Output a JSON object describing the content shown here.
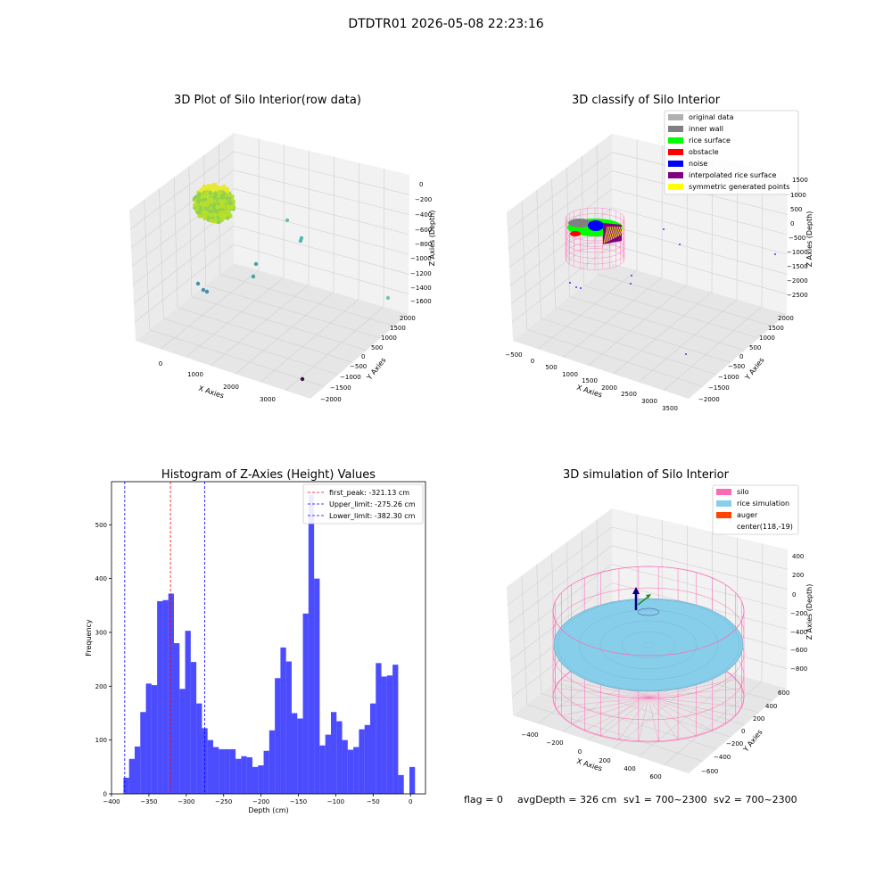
{
  "figure": {
    "suptitle": "DTDTR01 2026-05-08 22:23:16"
  },
  "panels": {
    "raw": {
      "title": "3D Plot of Silo Interior(row data)",
      "xlabel": "X Axies",
      "ylabel": "Y Axies",
      "zlabel": "Z Axies (Depth)",
      "xticks": [
        "0",
        "1000",
        "2000",
        "3000"
      ],
      "yticks": [
        "2000",
        "1500",
        "1000",
        "500",
        "0",
        "−500",
        "−1000",
        "−1500",
        "−2000"
      ],
      "zticks": [
        "0",
        "−200",
        "−400",
        "−600",
        "−800",
        "−1000",
        "−1200",
        "−1400",
        "−1600"
      ]
    },
    "classify": {
      "title": "3D classify of Silo Interior",
      "xlabel": "X Axies",
      "ylabel": "Y Axies",
      "zlabel": "Z Axies (Depth)",
      "xticks": [
        "−500",
        "0",
        "500",
        "1000",
        "1500",
        "2000",
        "2500",
        "3000",
        "3500"
      ],
      "yticks": [
        "2000",
        "1500",
        "1000",
        "500",
        "0",
        "−500",
        "−1000",
        "−1500",
        "−2000"
      ],
      "zticks": [
        "1500",
        "1000",
        "500",
        "0",
        "−500",
        "−1000",
        "−1500",
        "−2000",
        "−2500"
      ],
      "legend": [
        {
          "label": "original data",
          "color": "#b0b0b0"
        },
        {
          "label": "inner wall",
          "color": "#808080"
        },
        {
          "label": "rice surface",
          "color": "#00ff00"
        },
        {
          "label": "obstacle",
          "color": "#ff0000"
        },
        {
          "label": "noise",
          "color": "#0000ff"
        },
        {
          "label": "interpolated rice surface",
          "color": "#800080"
        },
        {
          "label": "symmetric generated points",
          "color": "#ffff00"
        }
      ]
    },
    "simulation": {
      "title": "3D simulation of Silo Interior",
      "xlabel": "X Axies",
      "ylabel": "Y Axies",
      "zlabel": "Z Axies (Depth)",
      "xticks": [
        "−400",
        "−200",
        "0",
        "200",
        "400",
        "600"
      ],
      "yticks": [
        "600",
        "400",
        "200",
        "0",
        "−200",
        "−400",
        "−600"
      ],
      "zticks": [
        "400",
        "200",
        "0",
        "−200",
        "−400",
        "−600",
        "−800"
      ],
      "legend": [
        {
          "label": "silo",
          "color": "#ff69b4"
        },
        {
          "label": "rice simulation",
          "color": "#87ceeb"
        },
        {
          "label": "auger",
          "color": "#ff4500"
        },
        {
          "label": "center(118,-19)",
          "color": ""
        }
      ]
    }
  },
  "chart_data": {
    "type": "bar",
    "title": "Histogram of Z-Axies (Height) Values",
    "xlabel": "Depth (cm)",
    "ylabel": "Frequency",
    "xlim": [
      -400,
      20
    ],
    "ylim": [
      0,
      580
    ],
    "xticks": [
      -400,
      -350,
      -300,
      -250,
      -200,
      -150,
      -100,
      -50,
      0
    ],
    "yticks": [
      0,
      100,
      200,
      300,
      400,
      500
    ],
    "bar_color": "#0000ff",
    "bin_width": 7.5,
    "bin_start": -384,
    "values": [
      30,
      65,
      88,
      152,
      205,
      202,
      358,
      360,
      372,
      280,
      195,
      303,
      245,
      168,
      122,
      100,
      87,
      83,
      83,
      83,
      65,
      70,
      68,
      50,
      53,
      80,
      118,
      215,
      272,
      246,
      150,
      140,
      335,
      555,
      400,
      90,
      110,
      152,
      135,
      100,
      82,
      87,
      120,
      128,
      168,
      243,
      218,
      220,
      240,
      35,
      0,
      50
    ],
    "lines": [
      {
        "label": "first_peak: -321.13 cm",
        "x": -321.13,
        "color": "#ff0000"
      },
      {
        "label": "Upper_limit: -275.26 cm",
        "x": -275.26,
        "color": "#0000ff"
      },
      {
        "label": "Lower_limit: -382.30 cm",
        "x": -382.3,
        "color": "#0000ff"
      }
    ],
    "legend_position": "top-right"
  },
  "footer": {
    "flag": "flag = 0",
    "avg_depth": "avgDepth = 326 cm",
    "sv1": "sv1 = 700~2300",
    "sv2": "sv2 = 700~2300"
  }
}
